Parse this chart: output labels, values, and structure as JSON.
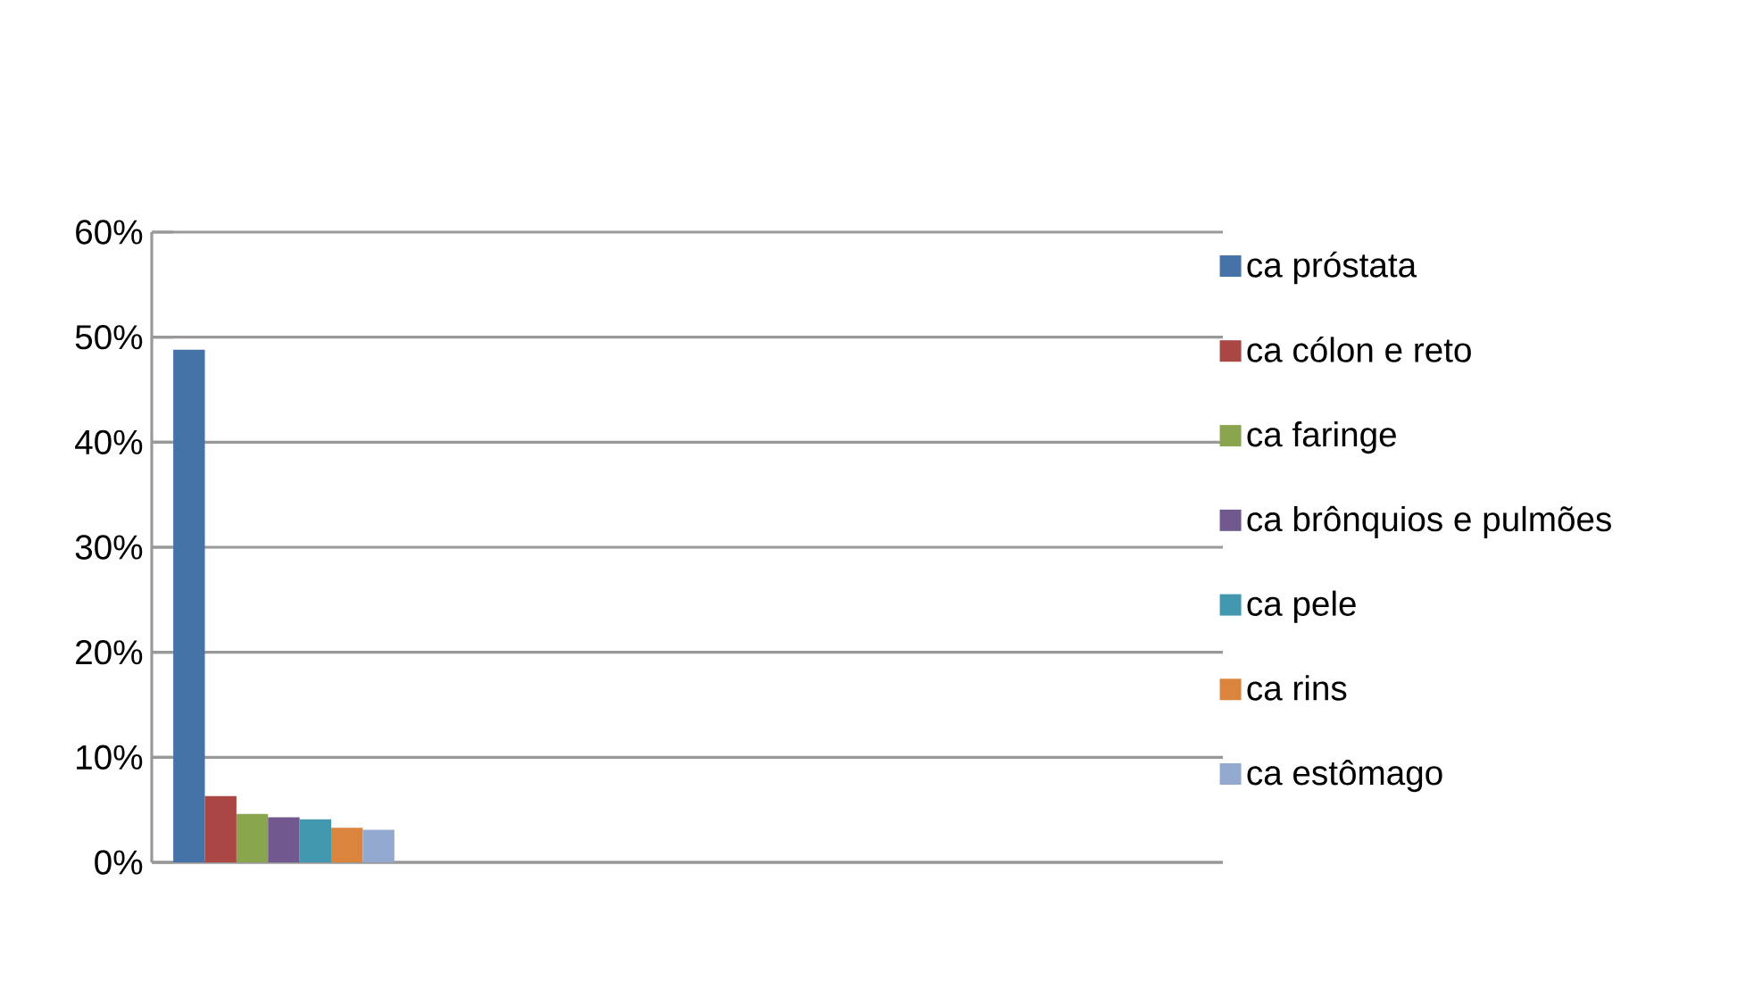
{
  "chart_data": {
    "type": "bar",
    "categories": [
      null
    ],
    "series": [
      {
        "name": "ca próstata",
        "color": "#4572a7",
        "values": [
          48.8
        ]
      },
      {
        "name": "ca cólon e reto",
        "color": "#aa4643",
        "values": [
          6.3
        ]
      },
      {
        "name": "ca faringe",
        "color": "#89a54e",
        "values": [
          4.6
        ]
      },
      {
        "name": "ca brônquios e pulmões",
        "color": "#71588f",
        "values": [
          4.3
        ]
      },
      {
        "name": "ca pele",
        "color": "#4198af",
        "values": [
          4.1
        ]
      },
      {
        "name": "ca rins",
        "color": "#db843d",
        "values": [
          3.3
        ]
      },
      {
        "name": "ca estômago",
        "color": "#93a9cf",
        "values": [
          3.1
        ]
      }
    ],
    "ylim": [
      0,
      60
    ],
    "yticks": [
      {
        "value": 0,
        "label": "0%"
      },
      {
        "value": 10,
        "label": "10%"
      },
      {
        "value": 20,
        "label": "20%"
      },
      {
        "value": 30,
        "label": "30%"
      },
      {
        "value": 40,
        "label": "40%"
      },
      {
        "value": 50,
        "label": "50%"
      },
      {
        "value": 60,
        "label": "60%"
      }
    ],
    "grid": "y",
    "legend": "right",
    "tick_labels": "y"
  }
}
